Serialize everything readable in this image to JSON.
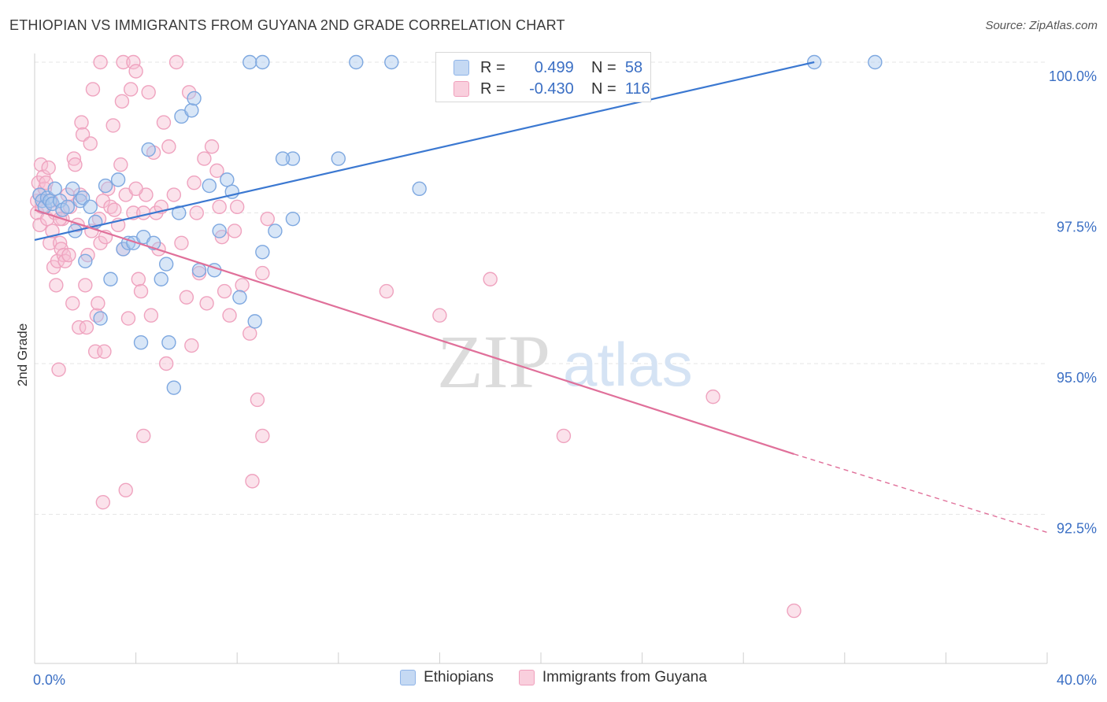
{
  "header": {
    "title": "ETHIOPIAN VS IMMIGRANTS FROM GUYANA 2ND GRADE CORRELATION CHART",
    "source": "Source: ZipAtlas.com"
  },
  "watermark": {
    "zip": "ZIP",
    "atlas": "atlas"
  },
  "legend_top": {
    "rows": [
      {
        "r_label": "R =",
        "r_value": "0.499",
        "n_label": "N =",
        "n_value": "58",
        "color": "#8fb4e8",
        "fill": "#c5d9f3"
      },
      {
        "r_label": "R =",
        "r_value": "-0.430",
        "n_label": "N =",
        "n_value": "116",
        "color": "#f0a0bc",
        "fill": "#f9cfdd"
      }
    ]
  },
  "chart_data": {
    "type": "scatter",
    "title": "ETHIOPIAN VS IMMIGRANTS FROM GUYANA 2ND GRADE CORRELATION CHART",
    "xlabel": "",
    "ylabel": "2nd Grade",
    "xlim": [
      0,
      40
    ],
    "ylim": [
      90.9,
      100.5
    ],
    "x_tick_labels": [
      "0.0%",
      "40.0%"
    ],
    "y_ticks": [
      92.5,
      95.0,
      97.5,
      100.0
    ],
    "y_tick_labels": [
      "92.5%",
      "95.0%",
      "97.5%",
      "100.0%"
    ],
    "grid": true,
    "legend_position": "bottom",
    "series": [
      {
        "name": "Ethiopians",
        "color": "#3b78d1",
        "fill": "#a9c7ee",
        "trend": {
          "x0": 0,
          "y0": 97.05,
          "x1": 30.8,
          "y1": 100.0,
          "dashed_to": null
        },
        "points": [
          [
            0.2,
            97.8
          ],
          [
            0.3,
            97.7
          ],
          [
            0.4,
            97.6
          ],
          [
            0.5,
            97.75
          ],
          [
            0.6,
            97.7
          ],
          [
            0.7,
            97.65
          ],
          [
            0.8,
            97.9
          ],
          [
            1.0,
            97.7
          ],
          [
            1.1,
            97.55
          ],
          [
            1.3,
            97.6
          ],
          [
            1.5,
            97.9
          ],
          [
            1.6,
            97.2
          ],
          [
            1.8,
            97.7
          ],
          [
            1.9,
            97.75
          ],
          [
            2.0,
            96.7
          ],
          [
            2.2,
            97.6
          ],
          [
            2.4,
            97.35
          ],
          [
            2.6,
            95.75
          ],
          [
            2.8,
            97.95
          ],
          [
            3.0,
            96.4
          ],
          [
            3.3,
            98.05
          ],
          [
            3.5,
            96.9
          ],
          [
            3.7,
            97.0
          ],
          [
            3.9,
            97.0
          ],
          [
            4.2,
            95.35
          ],
          [
            4.3,
            97.1
          ],
          [
            4.5,
            98.55
          ],
          [
            4.7,
            97.0
          ],
          [
            5.0,
            96.4
          ],
          [
            5.2,
            96.65
          ],
          [
            5.3,
            95.35
          ],
          [
            5.5,
            94.6
          ],
          [
            5.7,
            97.5
          ],
          [
            5.8,
            99.1
          ],
          [
            6.2,
            99.2
          ],
          [
            6.3,
            99.4
          ],
          [
            6.5,
            96.55
          ],
          [
            6.9,
            97.95
          ],
          [
            7.1,
            96.55
          ],
          [
            7.3,
            97.2
          ],
          [
            7.6,
            98.05
          ],
          [
            7.8,
            97.85
          ],
          [
            8.1,
            96.1
          ],
          [
            8.7,
            95.7
          ],
          [
            9.0,
            96.85
          ],
          [
            8.5,
            100.0
          ],
          [
            9.0,
            100.0
          ],
          [
            9.5,
            97.2
          ],
          [
            10.2,
            97.4
          ],
          [
            10.2,
            98.4
          ],
          [
            12.0,
            98.4
          ],
          [
            12.7,
            100.0
          ],
          [
            14.1,
            100.0
          ],
          [
            15.2,
            97.9
          ],
          [
            9.8,
            98.4
          ],
          [
            21.0,
            100.0
          ],
          [
            30.8,
            100.0
          ],
          [
            33.2,
            100.0
          ]
        ]
      },
      {
        "name": "Immigrants from Guyana",
        "color": "#e0709a",
        "fill": "#f6bfd2",
        "trend": {
          "x0": 0,
          "y0": 97.55,
          "x1": 30.0,
          "y1": 93.5,
          "dashed_to": [
            40.0,
            92.2
          ]
        },
        "points": [
          [
            0.1,
            97.7
          ],
          [
            0.1,
            97.5
          ],
          [
            0.15,
            98.0
          ],
          [
            0.2,
            97.8
          ],
          [
            0.2,
            97.3
          ],
          [
            0.25,
            98.3
          ],
          [
            0.3,
            97.6
          ],
          [
            0.35,
            98.1
          ],
          [
            0.4,
            97.9
          ],
          [
            0.45,
            98.0
          ],
          [
            0.5,
            97.4
          ],
          [
            0.55,
            98.25
          ],
          [
            0.6,
            97.0
          ],
          [
            0.65,
            97.7
          ],
          [
            0.7,
            97.2
          ],
          [
            0.75,
            96.6
          ],
          [
            0.8,
            97.5
          ],
          [
            0.85,
            96.3
          ],
          [
            0.9,
            96.7
          ],
          [
            0.95,
            94.9
          ],
          [
            1.0,
            97.0
          ],
          [
            1.05,
            96.9
          ],
          [
            1.1,
            97.4
          ],
          [
            1.15,
            96.8
          ],
          [
            1.2,
            96.7
          ],
          [
            1.3,
            97.8
          ],
          [
            1.35,
            96.8
          ],
          [
            1.4,
            97.6
          ],
          [
            1.5,
            96.0
          ],
          [
            1.55,
            98.4
          ],
          [
            1.6,
            98.3
          ],
          [
            1.7,
            97.3
          ],
          [
            1.75,
            95.6
          ],
          [
            1.8,
            97.8
          ],
          [
            1.85,
            99.0
          ],
          [
            1.9,
            98.8
          ],
          [
            2.0,
            96.3
          ],
          [
            2.05,
            95.6
          ],
          [
            2.1,
            96.8
          ],
          [
            2.2,
            98.65
          ],
          [
            2.25,
            97.2
          ],
          [
            2.3,
            99.55
          ],
          [
            2.4,
            95.2
          ],
          [
            2.45,
            95.8
          ],
          [
            2.5,
            96.0
          ],
          [
            2.55,
            97.4
          ],
          [
            2.6,
            97.0
          ],
          [
            2.7,
            97.7
          ],
          [
            2.75,
            95.2
          ],
          [
            2.8,
            97.1
          ],
          [
            2.9,
            97.9
          ],
          [
            3.0,
            97.6
          ],
          [
            2.6,
            100.0
          ],
          [
            2.7,
            92.7
          ],
          [
            3.1,
            98.95
          ],
          [
            3.15,
            97.55
          ],
          [
            3.3,
            97.3
          ],
          [
            3.4,
            98.3
          ],
          [
            3.45,
            99.35
          ],
          [
            3.5,
            96.9
          ],
          [
            3.6,
            97.8
          ],
          [
            3.7,
            95.75
          ],
          [
            3.8,
            99.55
          ],
          [
            3.9,
            97.5
          ],
          [
            3.5,
            100.0
          ],
          [
            3.6,
            92.9
          ],
          [
            3.9,
            100.0
          ],
          [
            4.0,
            99.85
          ],
          [
            4.1,
            96.4
          ],
          [
            4.2,
            96.2
          ],
          [
            4.3,
            97.5
          ],
          [
            4.4,
            97.8
          ],
          [
            4.5,
            99.5
          ],
          [
            4.6,
            95.8
          ],
          [
            4.7,
            98.5
          ],
          [
            4.8,
            97.5
          ],
          [
            4.9,
            96.9
          ],
          [
            5.0,
            97.6
          ],
          [
            5.1,
            99.0
          ],
          [
            5.2,
            95.0
          ],
          [
            5.3,
            98.6
          ],
          [
            5.5,
            97.8
          ],
          [
            5.6,
            100.0
          ],
          [
            5.8,
            97.0
          ],
          [
            6.0,
            96.1
          ],
          [
            6.1,
            99.5
          ],
          [
            6.2,
            95.3
          ],
          [
            6.3,
            98.0
          ],
          [
            6.4,
            97.5
          ],
          [
            6.5,
            96.5
          ],
          [
            6.7,
            98.4
          ],
          [
            6.8,
            96.0
          ],
          [
            7.0,
            98.6
          ],
          [
            7.2,
            98.2
          ],
          [
            7.3,
            97.6
          ],
          [
            7.4,
            97.1
          ],
          [
            7.5,
            96.2
          ],
          [
            7.7,
            95.8
          ],
          [
            7.9,
            97.2
          ],
          [
            8.0,
            97.6
          ],
          [
            8.2,
            96.3
          ],
          [
            8.5,
            95.5
          ],
          [
            8.6,
            93.05
          ],
          [
            8.8,
            94.4
          ],
          [
            9.0,
            96.5
          ],
          [
            9.2,
            97.4
          ],
          [
            9.0,
            93.8
          ],
          [
            4.3,
            93.8
          ],
          [
            13.9,
            96.2
          ],
          [
            16.0,
            95.8
          ],
          [
            18.0,
            96.4
          ],
          [
            20.9,
            93.8
          ],
          [
            26.8,
            94.45
          ],
          [
            30.0,
            90.9
          ],
          [
            1.0,
            97.4
          ],
          [
            4.0,
            97.9
          ]
        ]
      }
    ]
  }
}
